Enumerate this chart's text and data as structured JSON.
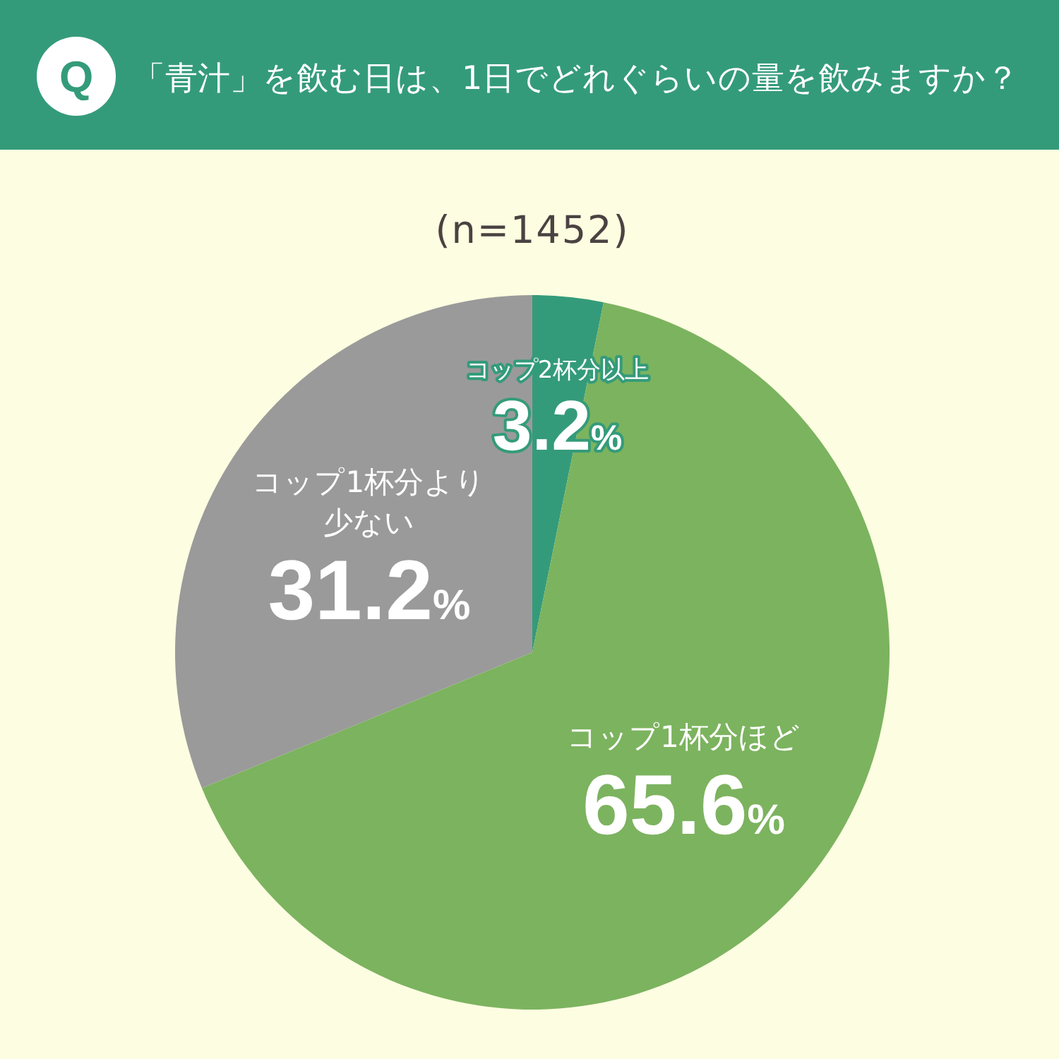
{
  "chart_data": {
    "type": "pie",
    "title": "「青汁」を飲む日は、1日でどれぐらいの量を飲みますか？",
    "subtitle": "(n=1452)",
    "annotations": [
      "Q"
    ],
    "categories": [
      "コップ2杯分以上",
      "コップ1杯分ほど",
      "コップ1杯分より少ない"
    ],
    "values": [
      3.2,
      65.6,
      31.2
    ],
    "colors": [
      "#349b7a",
      "#7cb35f",
      "#9a9a9a"
    ],
    "value_labels": [
      "3.2%",
      "65.6%",
      "31.2%"
    ]
  }
}
